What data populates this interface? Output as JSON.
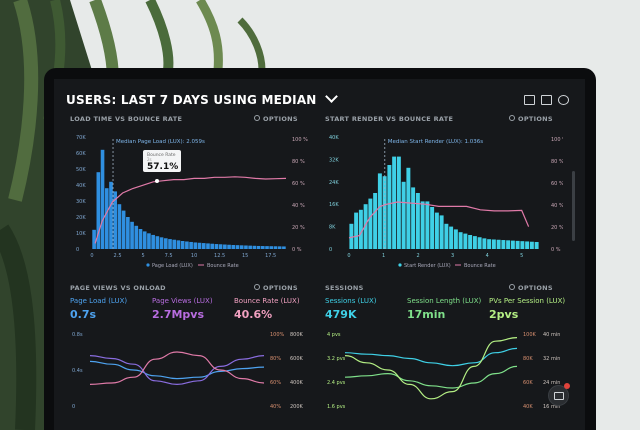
{
  "header": {
    "prefix": "USERS:",
    "title": "LAST 7 DAYS USING MEDIAN"
  },
  "options_label": "OPTIONS",
  "panels": {
    "load_vs_bounce": {
      "title": "LOAD TIME VS BOUNCE RATE",
      "median_label": "Median Page Load (LUX): 2.059s",
      "tooltip_label": "Bounce Rate",
      "tooltip_sub": "2s",
      "tooltip_value": "57.1%",
      "legend": [
        "Page Load (LUX)",
        "Bounce Rate"
      ]
    },
    "render_vs_bounce": {
      "title": "START RENDER VS BOUNCE RATE",
      "median_label": "Median Start Render (LUX): 1.036s",
      "legend": [
        "Start Render (LUX)",
        "Bounce Rate"
      ]
    },
    "views_vs_onload": {
      "title": "PAGE VIEWS VS ONLOAD",
      "metrics": [
        {
          "label": "Page Load (LUX)",
          "value": "0.7s"
        },
        {
          "label": "Page Views (LUX)",
          "value": "2.7Mpvs"
        },
        {
          "label": "Bounce Rate (LUX)",
          "value": "40.6%"
        }
      ]
    },
    "sessions": {
      "title": "SESSIONS",
      "metrics": [
        {
          "label": "Sessions (LUX)",
          "value": "479K"
        },
        {
          "label": "Session Length (LUX)",
          "value": "17min"
        },
        {
          "label": "PVs Per Session (LUX)",
          "value": "2pvs"
        }
      ]
    }
  },
  "colors": {
    "blue": "#2f8fe0",
    "cyan": "#3fd0e6",
    "pink": "#e07aa8",
    "purple": "#b86de0",
    "green": "#7fe08a",
    "orange": "#f0a24a"
  },
  "chart_data": [
    {
      "type": "bar",
      "title": "LOAD TIME VS BOUNCE RATE",
      "x_ticks": [
        "0",
        "2.5",
        "5",
        "7.5",
        "10",
        "12.5",
        "15",
        "17.5"
      ],
      "y_left_ticks": [
        "0",
        "10K",
        "20K",
        "30K",
        "40K",
        "50K",
        "60K",
        "70K"
      ],
      "y_right_ticks": [
        "0 %",
        "20 %",
        "40 %",
        "60 %",
        "80 %",
        "100 %"
      ],
      "series": [
        {
          "name": "Page Load (LUX)",
          "values": [
            12000,
            48000,
            62000,
            38000,
            42000,
            36000,
            28000,
            24000,
            20000,
            17000,
            14500,
            12500,
            11000,
            9800,
            8800,
            8000,
            7300,
            6700,
            6200,
            5800,
            5400,
            5000,
            4700,
            4400,
            4100,
            3900,
            3700,
            3500,
            3300,
            3100,
            2950,
            2800,
            2650,
            2500,
            2400,
            2300,
            2200,
            2100,
            2000,
            1900,
            1850,
            1800,
            1750,
            1700,
            1650,
            1600
          ]
        },
        {
          "name": "Bounce Rate",
          "points": [
            [
              0.3,
              5
            ],
            [
              1,
              25
            ],
            [
              2,
              42
            ],
            [
              3,
              50
            ],
            [
              4,
              54
            ],
            [
              5,
              57
            ],
            [
              6,
              60
            ],
            [
              7,
              61
            ],
            [
              8,
              62
            ],
            [
              9,
              62
            ],
            [
              10,
              63
            ],
            [
              11,
              63
            ],
            [
              12,
              64
            ],
            [
              13,
              64
            ],
            [
              14,
              64.5
            ],
            [
              15,
              64
            ],
            [
              16,
              63
            ],
            [
              17,
              62.5
            ],
            [
              18,
              62.8
            ],
            [
              19,
              63
            ]
          ]
        }
      ],
      "tooltip": {
        "x": 2,
        "value": "57.1%"
      },
      "median": 2.059
    },
    {
      "type": "bar",
      "title": "START RENDER VS BOUNCE RATE",
      "x_ticks": [
        "0",
        "1",
        "2",
        "3",
        "4",
        "5"
      ],
      "y_left_ticks": [
        "0",
        "8K",
        "16K",
        "24K",
        "32K",
        "40K"
      ],
      "y_right_ticks": [
        "0 %",
        "20 %",
        "40 %",
        "60 %",
        "80 %",
        "100 %"
      ],
      "series": [
        {
          "name": "Start Render (LUX)",
          "values": [
            9000,
            13000,
            14000,
            16000,
            18000,
            20000,
            27000,
            26000,
            30000,
            33000,
            33000,
            24000,
            29000,
            22000,
            20000,
            17000,
            17000,
            15000,
            13000,
            12000,
            9000,
            8000,
            7000,
            6000,
            5500,
            5000,
            4600,
            4200,
            3800,
            3500,
            3400,
            3300,
            3200,
            3100,
            3000,
            2900,
            2800,
            2700,
            2600,
            2500
          ]
        },
        {
          "name": "Bounce Rate",
          "points": [
            [
              0,
              10
            ],
            [
              0.3,
              12
            ],
            [
              0.6,
              28
            ],
            [
              0.9,
              38
            ],
            [
              1.1,
              40
            ],
            [
              1.4,
              42
            ],
            [
              1.8,
              41
            ],
            [
              2.2,
              40
            ],
            [
              2.6,
              38
            ],
            [
              3,
              38
            ],
            [
              3.4,
              38
            ],
            [
              3.8,
              35
            ],
            [
              4.2,
              34
            ],
            [
              4.6,
              34
            ],
            [
              5,
              34.5
            ],
            [
              5.2,
              20
            ]
          ]
        }
      ],
      "median": 1.036
    },
    {
      "type": "line",
      "title": "PAGE VIEWS VS ONLOAD",
      "y_left_ticks": [
        "0.8s",
        "0.4s",
        "0"
      ],
      "y_right_ticks_a": [
        "100%",
        "80%",
        "60%",
        "40%"
      ],
      "y_right_ticks_b": [
        "800K",
        "600K",
        "400K",
        "200K"
      ],
      "series": [
        {
          "name": "Page Load (LUX)",
          "values": [
            0.62,
            0.58,
            0.5,
            0.42,
            0.38,
            0.4,
            0.48,
            0.52,
            0.54
          ]
        },
        {
          "name": "Page Views (LUX)",
          "values": [
            0.7,
            0.66,
            0.58,
            0.35,
            0.3,
            0.35,
            0.55,
            0.65,
            0.7
          ]
        },
        {
          "name": "Bounce Rate (LUX)",
          "values": [
            0.3,
            0.32,
            0.4,
            0.65,
            0.75,
            0.7,
            0.5,
            0.38,
            0.32
          ]
        }
      ]
    },
    {
      "type": "line",
      "title": "SESSIONS",
      "y_left_ticks": [
        "4 pvs",
        "3.2 pvs",
        "2.4 pvs",
        "1.6 pvs"
      ],
      "y_right_ticks_a": [
        "100K",
        "80K",
        "60K",
        "40K"
      ],
      "y_right_ticks_b": [
        "40 min",
        "32 min",
        "24 min",
        "16 min"
      ],
      "series": [
        {
          "name": "Sessions (LUX)",
          "values": [
            0.74,
            0.72,
            0.7,
            0.66,
            0.6,
            0.56,
            0.6,
            0.74,
            0.8
          ]
        },
        {
          "name": "Session Length (LUX)",
          "values": [
            0.4,
            0.42,
            0.45,
            0.35,
            0.28,
            0.25,
            0.32,
            0.45,
            0.55
          ]
        },
        {
          "name": "PVs Per Session (LUX)",
          "values": [
            0.7,
            0.6,
            0.5,
            0.3,
            0.1,
            0.2,
            0.55,
            0.9,
            0.95
          ]
        }
      ]
    }
  ]
}
